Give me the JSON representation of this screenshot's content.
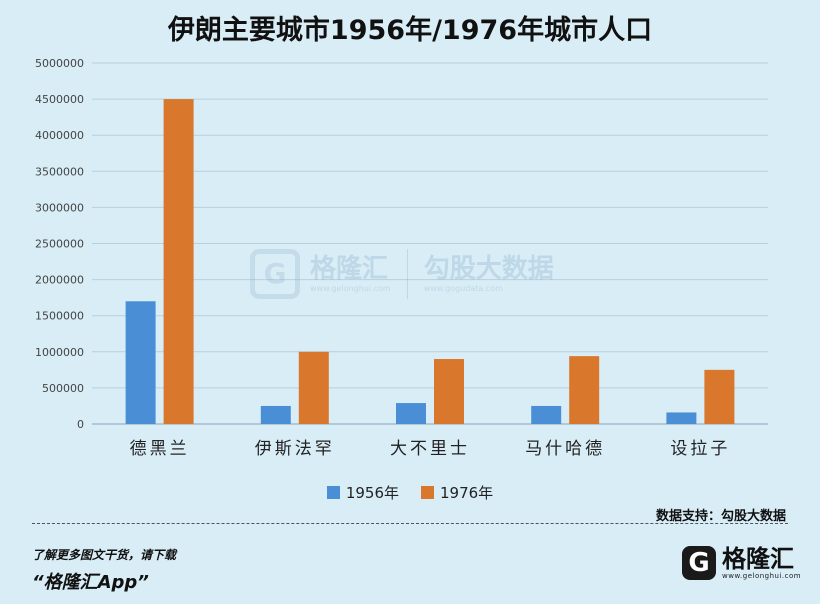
{
  "title": "伊朗主要城市1956年/1976年城市人口",
  "chart_data": {
    "type": "bar",
    "title": "伊朗主要城市1956年/1976年城市人口",
    "categories": [
      "德黑兰",
      "伊斯法罕",
      "大不里士",
      "马什哈德",
      "设拉子"
    ],
    "series": [
      {
        "name": "1956年",
        "values": [
          1700000,
          250000,
          290000,
          250000,
          160000
        ],
        "color": "#4a8fd6"
      },
      {
        "name": "1976年",
        "values": [
          4500000,
          1000000,
          900000,
          940000,
          750000
        ],
        "color": "#d9782c"
      }
    ],
    "ylim": [
      0,
      5000000
    ],
    "yticks": [
      0,
      500000,
      1000000,
      1500000,
      2000000,
      2500000,
      3000000,
      3500000,
      4000000,
      4500000,
      5000000
    ],
    "grid": true,
    "legend": "bottom",
    "xlabel": "",
    "ylabel": ""
  },
  "source": "数据支持：勾股大数据",
  "footer": {
    "line1": "了解更多图文干货，请下载",
    "line2": "“格隆汇App”"
  },
  "logo": {
    "mark": "G",
    "name": "格隆汇",
    "url": "www.gelonghui.com"
  },
  "watermark": {
    "mark": "G",
    "name_left": "格隆汇",
    "url_left": "www.gelonghui.com",
    "name_right": "勾股大数据",
    "url_right": "www.gogudata.com"
  }
}
